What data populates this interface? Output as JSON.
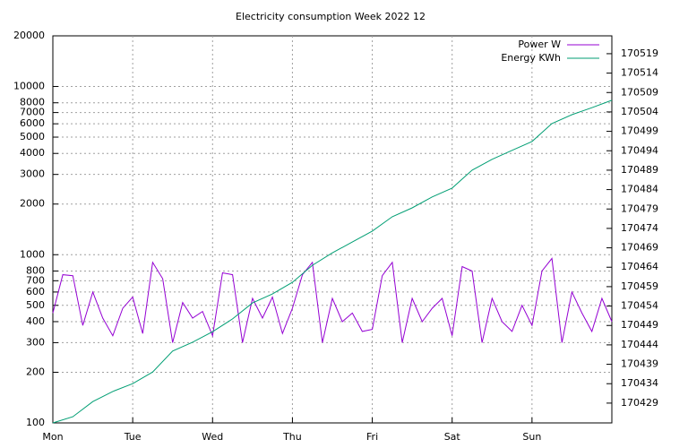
{
  "chart_data": {
    "type": "line",
    "title": "Electricity consumption Week 2022 12",
    "log_y": true,
    "grid": true,
    "legend": "top-right",
    "xlim": [
      0,
      7
    ],
    "xticks": [
      {
        "value": 0,
        "label": "Mon"
      },
      {
        "value": 1,
        "label": "Tue"
      },
      {
        "value": 2,
        "label": "Wed"
      },
      {
        "value": 3,
        "label": "Thu"
      },
      {
        "value": 4,
        "label": "Fri"
      },
      {
        "value": 5,
        "label": "Sat"
      },
      {
        "value": 6,
        "label": "Sun"
      }
    ],
    "ylim": [
      100,
      20000
    ],
    "yticks": [
      100,
      200,
      300,
      400,
      500,
      600,
      700,
      800,
      1000,
      2000,
      3000,
      4000,
      5000,
      6000,
      7000,
      8000,
      10000,
      20000
    ],
    "y2lim": [
      170423.9,
      170523.6
    ],
    "y2ticks": [
      170429,
      170434,
      170439,
      170444,
      170449,
      170454,
      170459,
      170464,
      170469,
      170474,
      170479,
      170484,
      170489,
      170494,
      170499,
      170504,
      170509,
      170514,
      170519
    ],
    "series": [
      {
        "name": "Power W",
        "color": "#9400d3",
        "x": [
          0,
          0.125,
          0.25,
          0.375,
          0.5,
          0.625,
          0.75,
          0.875,
          1,
          1.125,
          1.25,
          1.375,
          1.5,
          1.625,
          1.75,
          1.875,
          2,
          2.125,
          2.25,
          2.375,
          2.5,
          2.625,
          2.75,
          2.875,
          3,
          3.125,
          3.25,
          3.375,
          3.5,
          3.625,
          3.75,
          3.875,
          4,
          4.125,
          4.25,
          4.375,
          4.5,
          4.625,
          4.75,
          4.875,
          5,
          5.125,
          5.25,
          5.375,
          5.5,
          5.625,
          5.75,
          5.875,
          6,
          6.125,
          6.25,
          6.375,
          6.5,
          6.625,
          6.75,
          6.875,
          7
        ],
        "values": [
          450,
          760,
          750,
          380,
          600,
          420,
          330,
          480,
          560,
          340,
          900,
          720,
          300,
          520,
          420,
          460,
          330,
          780,
          760,
          300,
          550,
          420,
          560,
          340,
          480,
          760,
          900,
          300,
          550,
          400,
          450,
          350,
          360,
          750,
          900,
          300,
          550,
          400,
          480,
          550,
          330,
          850,
          800,
          300,
          550,
          400,
          350,
          500,
          380,
          800,
          950,
          300,
          600,
          450,
          350,
          550,
          400
        ]
      },
      {
        "name": "Energy KWh",
        "color": "#009e73",
        "axis": "y2",
        "x": [
          0,
          0.25,
          0.5,
          0.75,
          1,
          1.25,
          1.5,
          1.75,
          2,
          2.25,
          2.5,
          2.75,
          3,
          3.25,
          3.5,
          3.75,
          4,
          4.25,
          4.5,
          4.75,
          5,
          5.25,
          5.5,
          5.75,
          6,
          6.25,
          6.5,
          6.75,
          7
        ],
        "values": [
          170423.9,
          170425.5,
          170429.4,
          170432,
          170434,
          170437,
          170442.4,
          170444.7,
          170447.4,
          170450.7,
          170454.8,
          170457.1,
          170460.1,
          170464.5,
          170467.7,
          170470.5,
          170473.3,
          170477,
          170479.3,
          170482.1,
          170484.4,
          170489,
          170491.8,
          170494.1,
          170496.4,
          170501,
          170503.3,
          170505.1,
          170507
        ]
      }
    ]
  }
}
